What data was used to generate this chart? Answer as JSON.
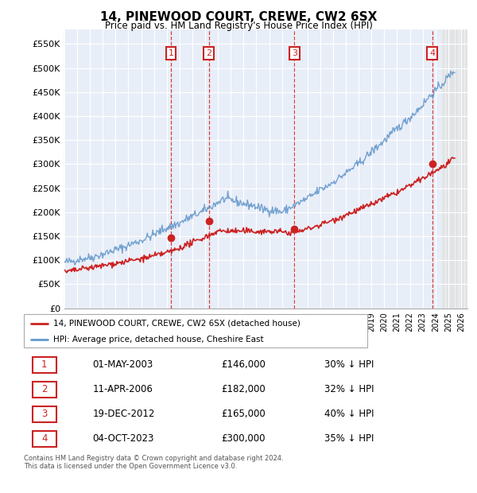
{
  "title": "14, PINEWOOD COURT, CREWE, CW2 6SX",
  "subtitle": "Price paid vs. HM Land Registry's House Price Index (HPI)",
  "ylabel_values": [
    "£0",
    "£50K",
    "£100K",
    "£150K",
    "£200K",
    "£250K",
    "£300K",
    "£350K",
    "£400K",
    "£450K",
    "£500K",
    "£550K"
  ],
  "ylim": [
    0,
    580000
  ],
  "yticks": [
    0,
    50000,
    100000,
    150000,
    200000,
    250000,
    300000,
    350000,
    400000,
    450000,
    500000,
    550000
  ],
  "sale_dates_num": [
    2003.33,
    2006.28,
    2012.97,
    2023.75
  ],
  "sale_prices": [
    146000,
    182000,
    165000,
    300000
  ],
  "sale_labels": [
    "1",
    "2",
    "3",
    "4"
  ],
  "legend_entries": [
    "14, PINEWOOD COURT, CREWE, CW2 6SX (detached house)",
    "HPI: Average price, detached house, Cheshire East"
  ],
  "table_rows": [
    [
      "1",
      "01-MAY-2003",
      "£146,000",
      "30% ↓ HPI"
    ],
    [
      "2",
      "11-APR-2006",
      "£182,000",
      "32% ↓ HPI"
    ],
    [
      "3",
      "19-DEC-2012",
      "£165,000",
      "40% ↓ HPI"
    ],
    [
      "4",
      "04-OCT-2023",
      "£300,000",
      "35% ↓ HPI"
    ]
  ],
  "footer": "Contains HM Land Registry data © Crown copyright and database right 2024.\nThis data is licensed under the Open Government Licence v3.0.",
  "hpi_color": "#6699cc",
  "price_color": "#cc2222",
  "background_plot": "#e8eef8",
  "grid_color": "#ffffff",
  "xlim_start": 1995.0,
  "xlim_end": 2026.5,
  "hatch_start": 2024.5
}
